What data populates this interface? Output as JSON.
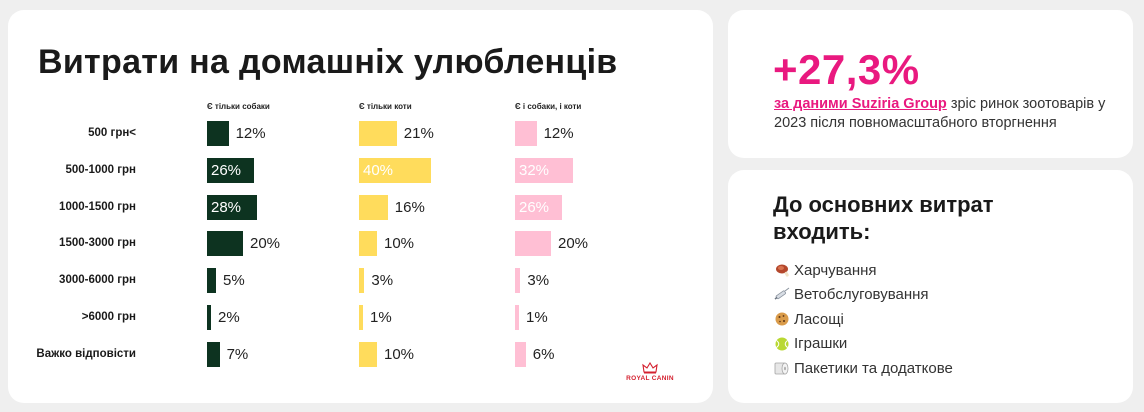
{
  "chart_card": {
    "title": "Витрати на домашніх улюбленців",
    "logo_text": "ROYAL CANIN"
  },
  "chart_data": {
    "type": "bar",
    "title": "Витрати на домашніх улюбленців",
    "categories": [
      "500 грн<",
      "500-1000 грн",
      "1000-1500 грн",
      "1500-3000 грн",
      "3000-6000 грн",
      ">6000 грн",
      "Важко відповісти"
    ],
    "series": [
      {
        "name": "Є тільки собаки",
        "color": "#0d3320",
        "values": [
          12,
          26,
          28,
          20,
          5,
          2,
          7
        ],
        "labels": [
          "12%",
          "26%",
          "28%",
          "20%",
          "5%",
          "2%",
          "7%"
        ]
      },
      {
        "name": "Є тільки коти",
        "color": "#ffdc5c",
        "values": [
          21,
          40,
          16,
          10,
          3,
          1,
          10
        ],
        "labels": [
          "21%",
          "40%",
          "16%",
          "10%",
          "3%",
          "1%",
          "10%"
        ]
      },
      {
        "name": "Є і собаки, і коти",
        "color": "#ffbfd4",
        "values": [
          12,
          32,
          26,
          20,
          3,
          1,
          6
        ],
        "labels": [
          "12%",
          "32%",
          "26%",
          "20%",
          "3%",
          "1%",
          "6%"
        ]
      }
    ],
    "label_inside_threshold": 25
  },
  "stat_card": {
    "value": "+27,3%",
    "link_text": "за даними Suziria Group",
    "description": " зріс ринок зоотоварів у 2023 після повномасштабного вторгнення"
  },
  "list_card": {
    "title": "До основних витрат входить:",
    "items": [
      {
        "icon": "meat-icon",
        "label": "Харчування"
      },
      {
        "icon": "syringe-icon",
        "label": "Ветобслуговування"
      },
      {
        "icon": "cookie-icon",
        "label": "Ласощі"
      },
      {
        "icon": "tennis-ball-icon",
        "label": "Іграшки"
      },
      {
        "icon": "toilet-paper-icon",
        "label": "Пакетики та додаткове"
      }
    ]
  }
}
